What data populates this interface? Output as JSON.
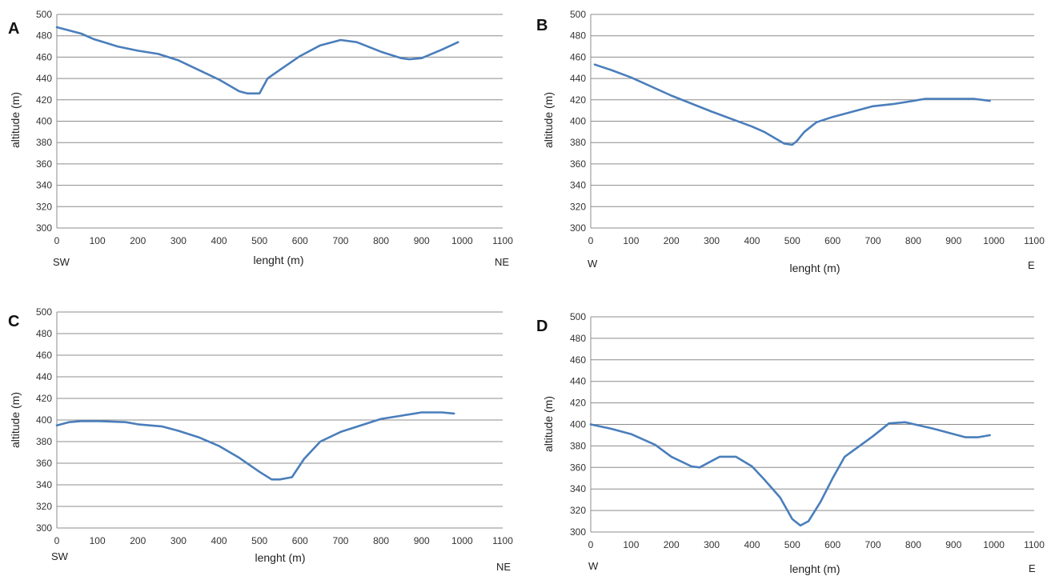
{
  "colors": {
    "series": "#4a7ebb",
    "grid": "#8c8c8c"
  },
  "chart_data": [
    {
      "panel": "A",
      "type": "line",
      "xlabel": "lenght (m)",
      "ylabel": "altitude (m)",
      "xlim": [
        0,
        1100
      ],
      "ylim": [
        300,
        500
      ],
      "xstep": 100,
      "ystep": 20,
      "grid": "horizontal",
      "direction_left": "SW",
      "direction_right": "NE",
      "x": [
        0,
        30,
        60,
        90,
        150,
        200,
        250,
        300,
        350,
        400,
        450,
        470,
        500,
        520,
        550,
        600,
        650,
        700,
        740,
        800,
        850,
        870,
        900,
        950,
        990
      ],
      "y": [
        488,
        485,
        482,
        477,
        470,
        466,
        463,
        457,
        448,
        439,
        428,
        426,
        426,
        440,
        448,
        461,
        471,
        476,
        474,
        465,
        459,
        458,
        459,
        467,
        474
      ]
    },
    {
      "panel": "B",
      "type": "line",
      "xlabel": "lenght (m)",
      "ylabel": "altitude (m)",
      "xlim": [
        0,
        1100
      ],
      "ylim": [
        300,
        500
      ],
      "xstep": 100,
      "ystep": 20,
      "grid": "horizontal",
      "direction_left": "W",
      "direction_right": "E",
      "x": [
        10,
        50,
        100,
        200,
        300,
        400,
        430,
        480,
        500,
        510,
        530,
        560,
        600,
        650,
        700,
        750,
        800,
        830,
        900,
        950,
        990
      ],
      "y": [
        453,
        448,
        441,
        424,
        409,
        395,
        390,
        379,
        378,
        381,
        390,
        399,
        404,
        409,
        414,
        416,
        419,
        421,
        421,
        421,
        419
      ]
    },
    {
      "panel": "C",
      "type": "line",
      "xlabel": "lenght (m)",
      "ylabel": "altitude (m)",
      "xlim": [
        0,
        1100
      ],
      "ylim": [
        300,
        500
      ],
      "xstep": 100,
      "ystep": 20,
      "grid": "horizontal",
      "direction_left": "SW",
      "direction_right": "NE",
      "x": [
        0,
        30,
        60,
        100,
        170,
        200,
        260,
        300,
        350,
        400,
        450,
        500,
        530,
        550,
        580,
        610,
        650,
        700,
        750,
        800,
        850,
        900,
        950,
        980
      ],
      "y": [
        395,
        398,
        399,
        399,
        398,
        396,
        394,
        390,
        384,
        376,
        365,
        352,
        345,
        345,
        347,
        364,
        380,
        389,
        395,
        401,
        404,
        407,
        407,
        406
      ]
    },
    {
      "panel": "D",
      "type": "line",
      "xlabel": "lenght (m)",
      "ylabel": "altitude (m)",
      "xlim": [
        0,
        1100
      ],
      "ylim": [
        300,
        500
      ],
      "xstep": 100,
      "ystep": 20,
      "grid": "horizontal",
      "direction_left": "W",
      "direction_right": "E",
      "x": [
        0,
        50,
        100,
        160,
        200,
        250,
        270,
        300,
        320,
        360,
        400,
        430,
        470,
        500,
        520,
        540,
        570,
        600,
        630,
        700,
        740,
        780,
        850,
        900,
        930,
        960,
        990
      ],
      "y": [
        400,
        396,
        391,
        381,
        370,
        361,
        360,
        366,
        370,
        370,
        361,
        349,
        332,
        312,
        306,
        310,
        328,
        350,
        370,
        389,
        401,
        402,
        396,
        391,
        388,
        388,
        390
      ]
    }
  ]
}
